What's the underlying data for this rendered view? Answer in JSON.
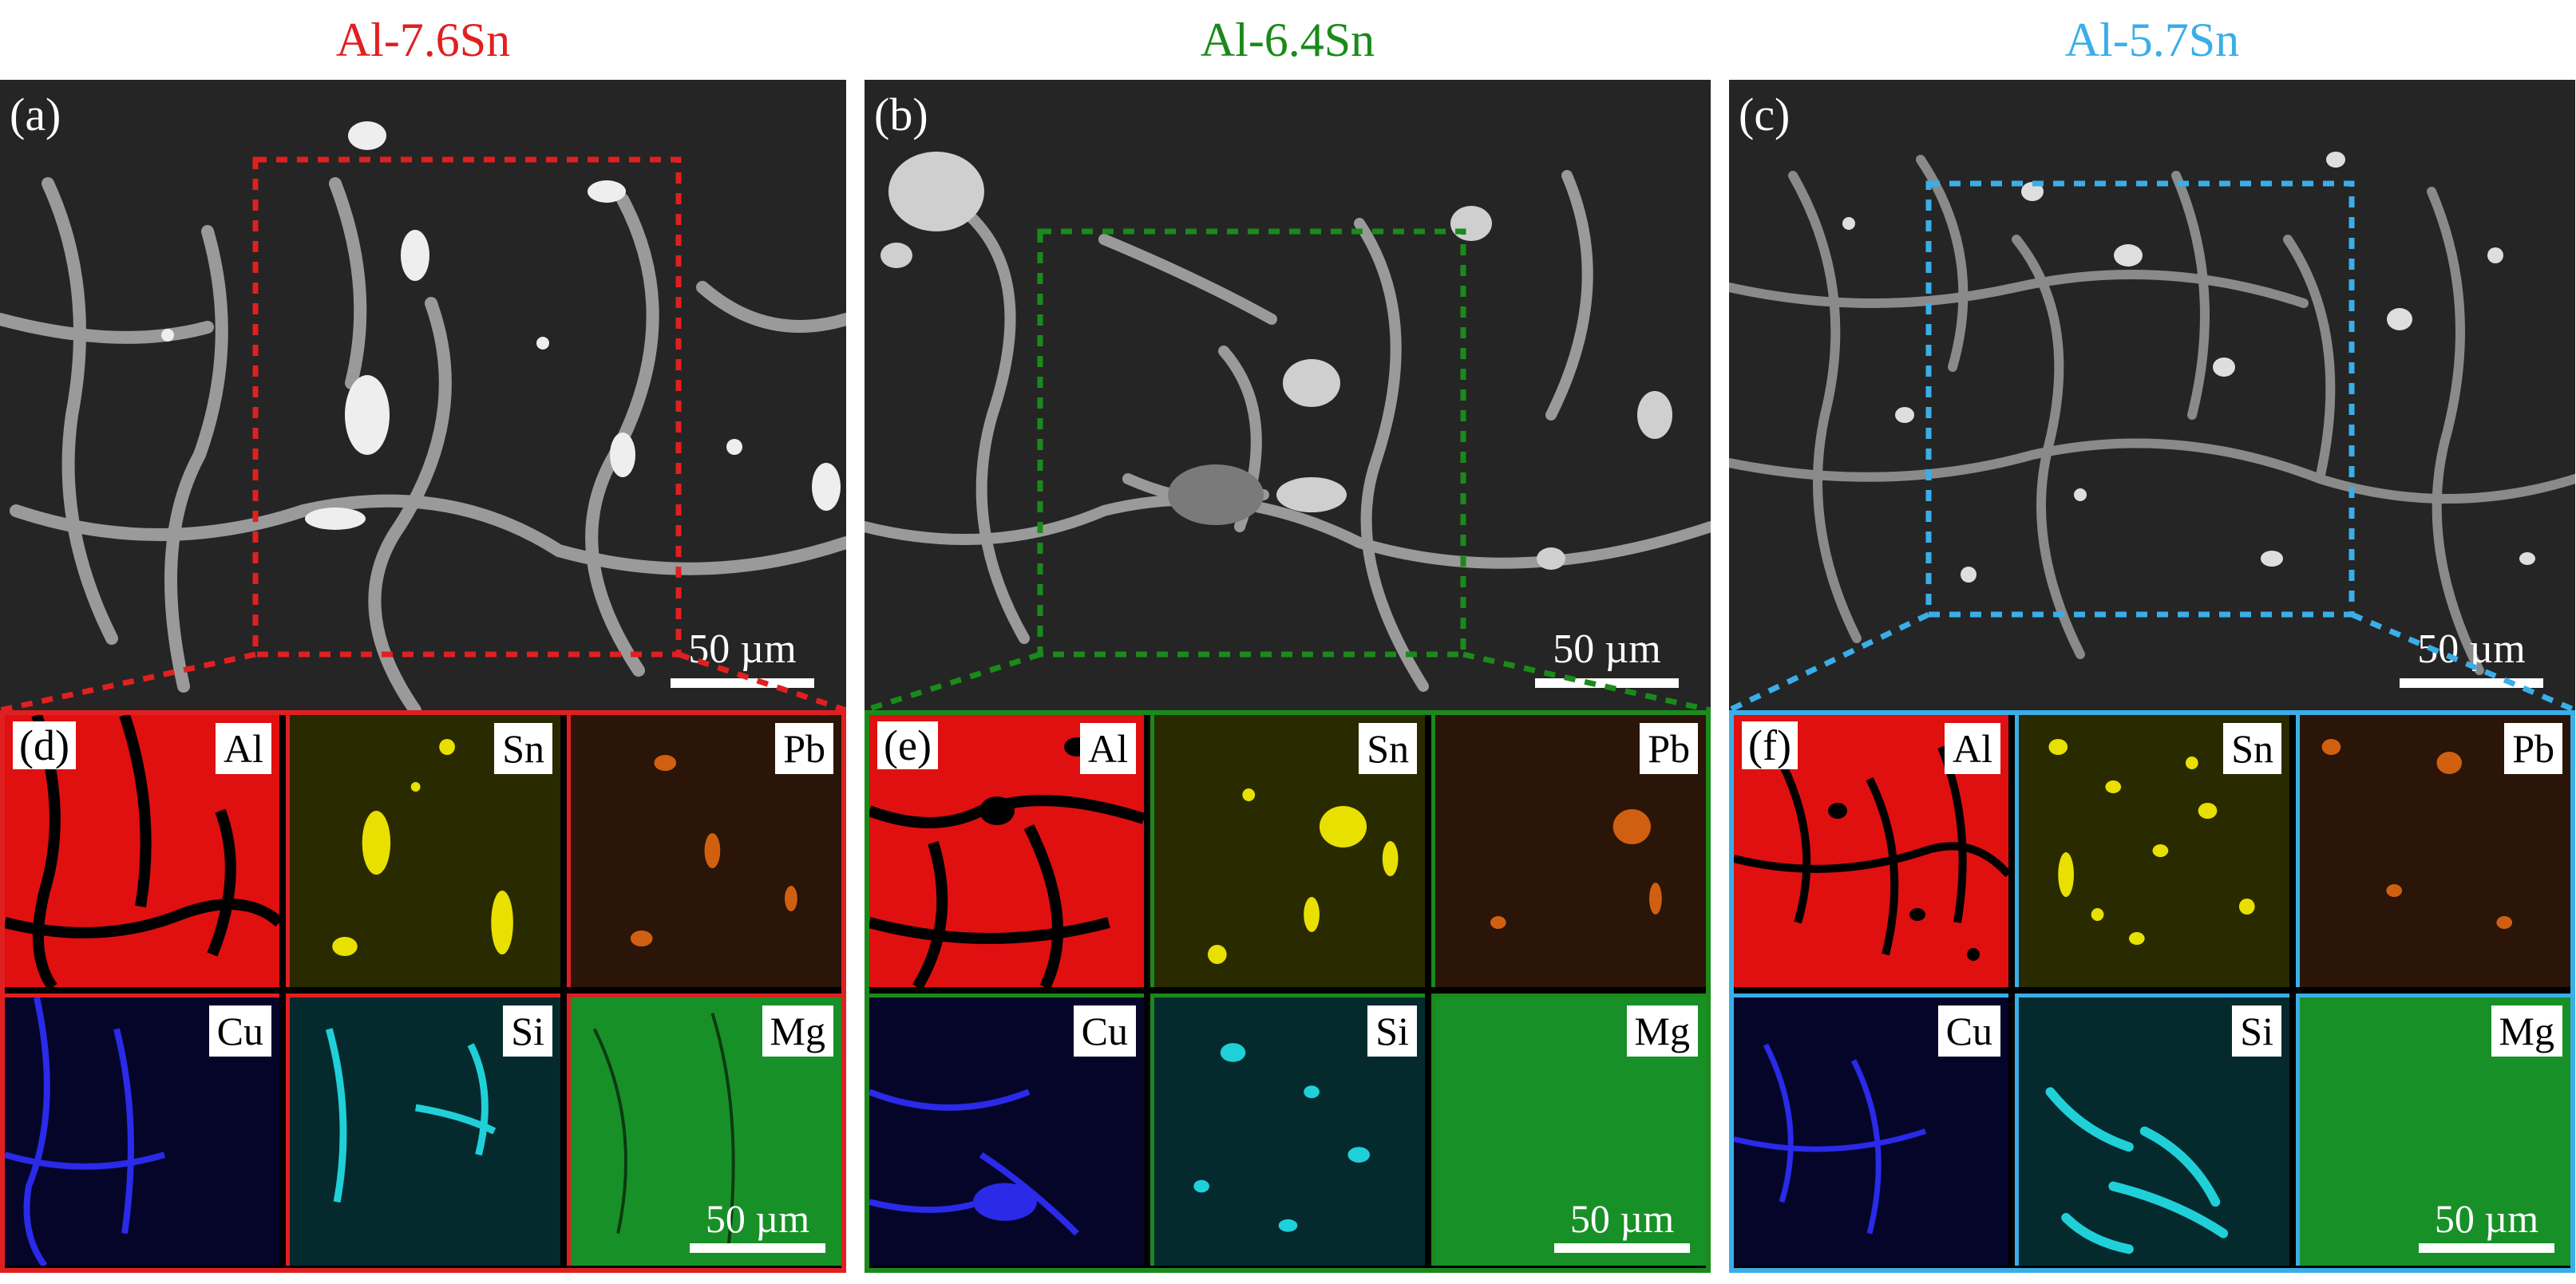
{
  "columns": [
    {
      "title": "Al-7.6Sn",
      "color": "#e02020",
      "sem_label": "(a)",
      "map_label": "(d)",
      "scale_text": "50 µm",
      "map_scale_text": "50 µm",
      "elements": [
        "Al",
        "Sn",
        "Pb",
        "Cu",
        "Si",
        "Mg"
      ]
    },
    {
      "title": "Al-6.4Sn",
      "color": "#1a8a1a",
      "sem_label": "(b)",
      "map_label": "(e)",
      "scale_text": "50 µm",
      "map_scale_text": "50 µm",
      "elements": [
        "Al",
        "Sn",
        "Pb",
        "Cu",
        "Si",
        "Mg"
      ]
    },
    {
      "title": "Al-5.7Sn",
      "color": "#3aaee8",
      "sem_label": "(c)",
      "map_label": "(f)",
      "scale_text": "50 µm",
      "map_scale_text": "50 µm",
      "elements": [
        "Al",
        "Sn",
        "Pb",
        "Cu",
        "Si",
        "Mg"
      ]
    }
  ],
  "map_colors": {
    "Al": "#e01010",
    "Sn": "#e8e000",
    "Pb": "#d06010",
    "Cu": "#2020e0",
    "Si": "#20d0d8",
    "Mg": "#20b030"
  }
}
